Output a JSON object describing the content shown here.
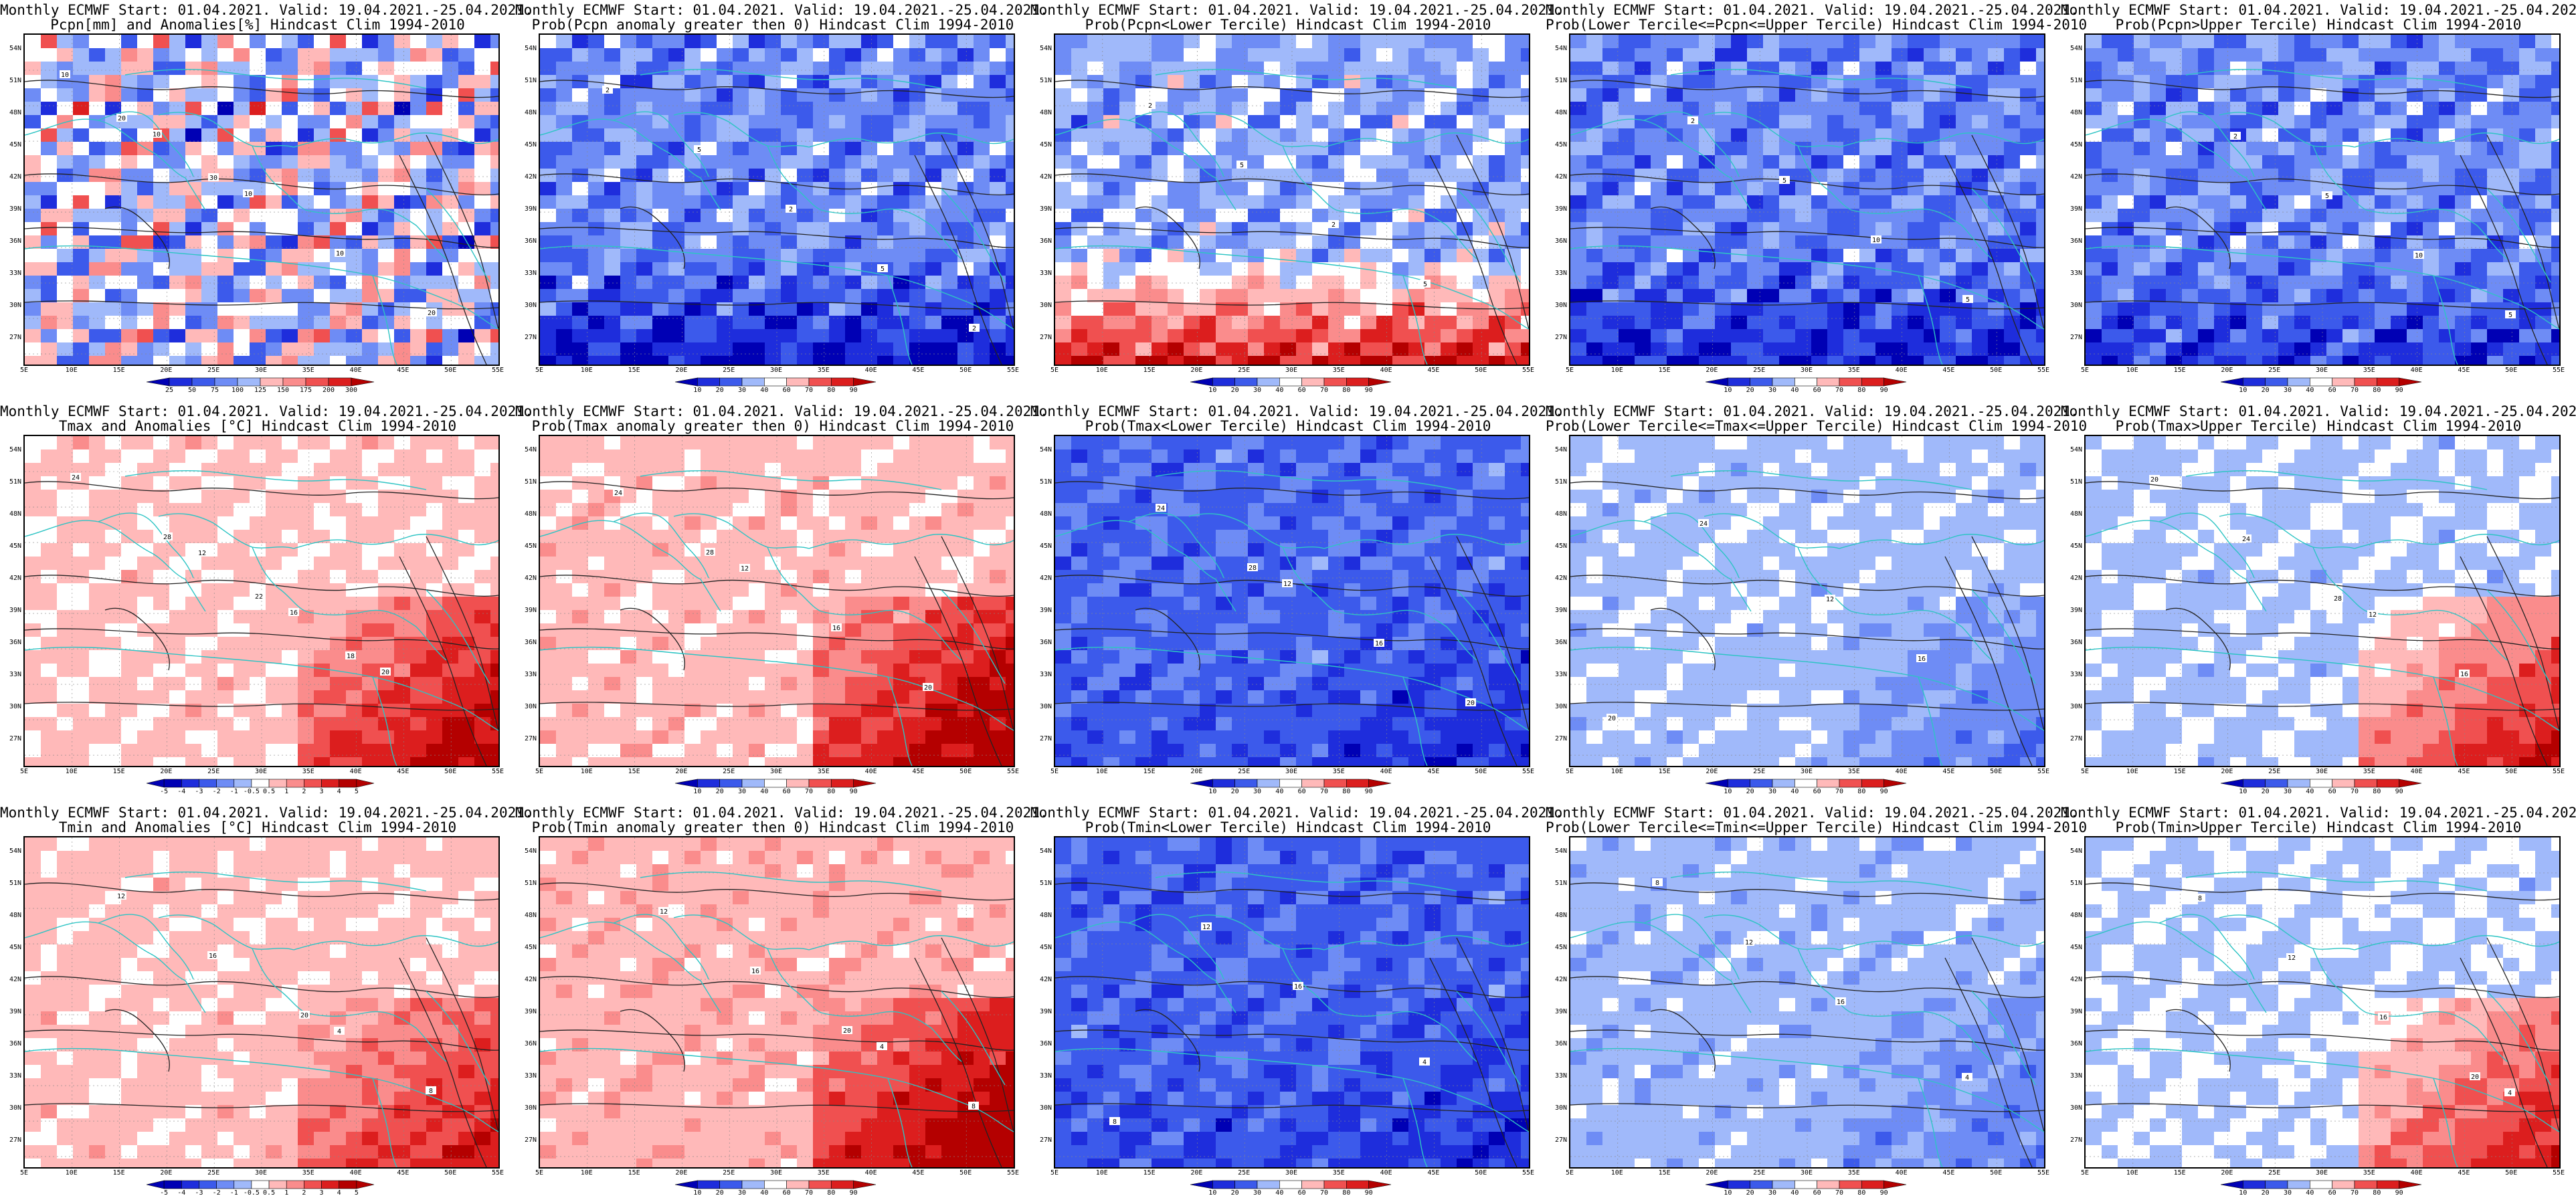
{
  "figure": {
    "header": "Monthly ECMWF Start: 01.04.2021. Valid: 19.04.2021.-25.04.2021.",
    "lat_labels": [
      "54N",
      "51N",
      "48N",
      "45N",
      "42N",
      "39N",
      "36N",
      "33N",
      "30N",
      "27N"
    ],
    "lon_labels": [
      "5E",
      "10E",
      "15E",
      "20E",
      "25E",
      "30E",
      "35E",
      "40E",
      "45E",
      "50E",
      "55E"
    ],
    "colors": {
      "coast": "#2ec4c4",
      "contour": "#222222",
      "dark_blue": "#0000c8",
      "white": "#ffffff",
      "dark_red": "#c80000"
    }
  },
  "colorbars": {
    "pcpn_anom": [
      "25",
      "50",
      "75",
      "100",
      "125",
      "150",
      "175",
      "200",
      "300"
    ],
    "prob": [
      "10",
      "20",
      "30",
      "40",
      "60",
      "70",
      "80",
      "90"
    ],
    "tmax_anom": [
      "-5",
      "-4",
      "-3",
      "-2",
      "-1",
      "-0.5",
      "0.5",
      "1",
      "2",
      "3",
      "4",
      "5"
    ],
    "tmin_anom": [
      "-5",
      "-4",
      "-3",
      "-2",
      "-1",
      "-0.5",
      "0.5",
      "1",
      "2",
      "3",
      "4",
      "5"
    ]
  },
  "panels": [
    {
      "id": "pcpn-anom",
      "subtitle": "Pcpn[mm] and Anomalies[%] Hindcast Clim 1994-2010",
      "cbar": "pcpn_anom",
      "field_mean": 0.45,
      "south_signal": 0.0,
      "southeast_signal": 0.0,
      "noise": 0.55,
      "contour_labels": [
        "10",
        "10",
        "10",
        "10",
        "20",
        "20",
        "30"
      ]
    },
    {
      "id": "pcpn-prob-gt0",
      "subtitle": "Prob(Pcpn anomaly greater then 0) Hindcast Clim 1994-2010",
      "cbar": "prob",
      "field_mean": 0.32,
      "south_signal": -0.25,
      "southeast_signal": 0.0,
      "noise": 0.3,
      "contour_labels": [
        "2",
        "5",
        "2",
        "5",
        "2"
      ]
    },
    {
      "id": "pcpn-prob-lower",
      "subtitle": "Prob(Pcpn<Lower Tercile) Hindcast Clim 1994-2010",
      "cbar": "prob",
      "field_mean": 0.38,
      "south_signal": 0.55,
      "southeast_signal": 0.0,
      "noise": 0.3,
      "contour_labels": [
        "2",
        "5",
        "2",
        "5"
      ]
    },
    {
      "id": "pcpn-prob-middle",
      "subtitle": "Prob(Lower Tercile<=Pcpn<=Upper Tercile) Hindcast Clim 1994-2010",
      "cbar": "prob",
      "field_mean": 0.3,
      "south_signal": -0.2,
      "southeast_signal": 0.0,
      "noise": 0.28,
      "contour_labels": [
        "2",
        "5",
        "10",
        "5"
      ]
    },
    {
      "id": "pcpn-prob-upper",
      "subtitle": "Prob(Pcpn>Upper Tercile) Hindcast Clim 1994-2010",
      "cbar": "prob",
      "field_mean": 0.32,
      "south_signal": -0.18,
      "southeast_signal": 0.0,
      "noise": 0.28,
      "contour_labels": [
        "2",
        "5",
        "10",
        "5"
      ]
    },
    {
      "id": "tmax-anom",
      "subtitle": "Tmax and Anomalies [°C] Hindcast Clim 1994-2010",
      "cbar": "tmax_anom",
      "field_mean": 0.56,
      "south_signal": 0.0,
      "southeast_signal": 0.28,
      "noise": 0.12,
      "contour_labels": [
        "12",
        "16",
        "20",
        "24",
        "28",
        "22",
        "18"
      ]
    },
    {
      "id": "tmax-prob-gt0",
      "subtitle": "Prob(Tmax anomaly greater then 0) Hindcast Clim 1994-2010",
      "cbar": "prob",
      "field_mean": 0.58,
      "south_signal": 0.0,
      "southeast_signal": 0.3,
      "noise": 0.13,
      "contour_labels": [
        "12",
        "16",
        "20",
        "24",
        "28"
      ]
    },
    {
      "id": "tmax-prob-lower",
      "subtitle": "Prob(Tmax<Lower Tercile) Hindcast Clim 1994-2010",
      "cbar": "prob",
      "field_mean": 0.25,
      "south_signal": -0.05,
      "southeast_signal": -0.05,
      "noise": 0.18,
      "contour_labels": [
        "12",
        "16",
        "20",
        "24",
        "28"
      ]
    },
    {
      "id": "tmax-prob-middle",
      "subtitle": "Prob(Lower Tercile<=Tmax<=Upper Tercile) Hindcast Clim 1994-2010",
      "cbar": "prob",
      "field_mean": 0.43,
      "south_signal": 0.0,
      "southeast_signal": -0.1,
      "noise": 0.12,
      "contour_labels": [
        "12",
        "16",
        "20",
        "24"
      ]
    },
    {
      "id": "tmax-prob-upper",
      "subtitle": "Prob(Tmax>Upper Tercile) Hindcast Clim 1994-2010",
      "cbar": "prob",
      "field_mean": 0.44,
      "south_signal": 0.0,
      "southeast_signal": 0.32,
      "noise": 0.12,
      "contour_labels": [
        "12",
        "16",
        "20",
        "24",
        "28"
      ]
    },
    {
      "id": "tmin-anom",
      "subtitle": "Tmin and Anomalies [°C] Hindcast Clim 1994-2010",
      "cbar": "tmin_anom",
      "field_mean": 0.57,
      "south_signal": 0.0,
      "southeast_signal": 0.22,
      "noise": 0.11,
      "contour_labels": [
        "4",
        "8",
        "12",
        "16",
        "20"
      ]
    },
    {
      "id": "tmin-prob-gt0",
      "subtitle": "Prob(Tmin anomaly greater then 0) Hindcast Clim 1994-2010",
      "cbar": "prob",
      "field_mean": 0.6,
      "south_signal": 0.0,
      "southeast_signal": 0.3,
      "noise": 0.13,
      "contour_labels": [
        "4",
        "8",
        "12",
        "16",
        "20"
      ]
    },
    {
      "id": "tmin-prob-lower",
      "subtitle": "Prob(Tmin<Lower Tercile) Hindcast Clim 1994-2010",
      "cbar": "prob",
      "field_mean": 0.24,
      "south_signal": -0.04,
      "southeast_signal": -0.05,
      "noise": 0.18,
      "contour_labels": [
        "4",
        "8",
        "12",
        "16"
      ]
    },
    {
      "id": "tmin-prob-middle",
      "subtitle": "Prob(Lower Tercile<=Tmin<=Upper Tercile) Hindcast Clim 1994-2010",
      "cbar": "prob",
      "field_mean": 0.41,
      "south_signal": 0.0,
      "southeast_signal": -0.08,
      "noise": 0.13,
      "contour_labels": [
        "4",
        "8",
        "12",
        "16"
      ]
    },
    {
      "id": "tmin-prob-upper",
      "subtitle": "Prob(Tmin>Upper Tercile) Hindcast Clim 1994-2010",
      "cbar": "prob",
      "field_mean": 0.45,
      "south_signal": 0.0,
      "southeast_signal": 0.3,
      "noise": 0.12,
      "contour_labels": [
        "4",
        "8",
        "12",
        "16",
        "20"
      ]
    }
  ]
}
